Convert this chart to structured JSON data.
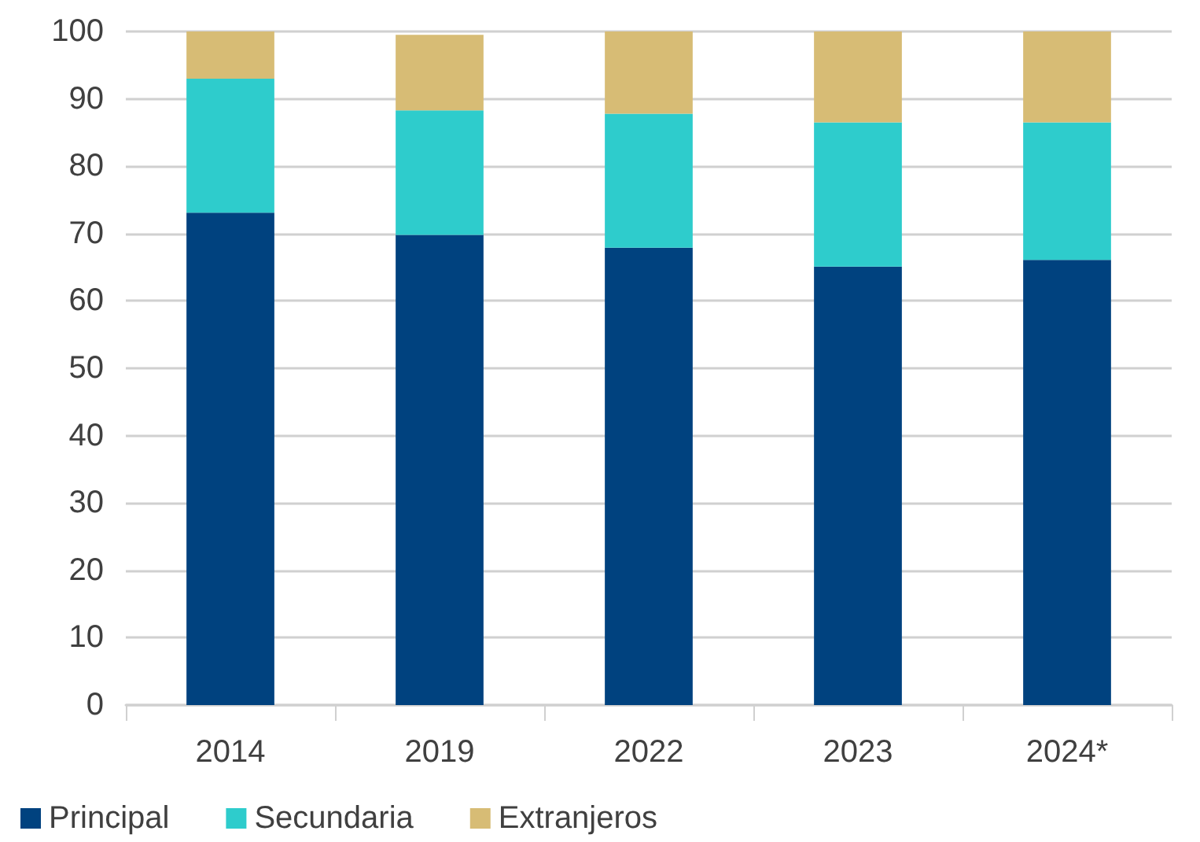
{
  "chart_data": {
    "type": "bar",
    "stacked": true,
    "categories": [
      "2014",
      "2019",
      "2022",
      "2023",
      "2024*"
    ],
    "series": [
      {
        "name": "Principal",
        "color": "#00427f",
        "values": [
          73.1,
          69.8,
          67.9,
          65.1,
          66.1
        ]
      },
      {
        "name": "Secundaria",
        "color": "#2ecccc",
        "values": [
          19.9,
          18.5,
          19.9,
          21.4,
          20.4
        ]
      },
      {
        "name": "Extranjeros",
        "color": "#d7bc75",
        "values": [
          7.0,
          11.2,
          12.2,
          13.5,
          13.5
        ]
      }
    ],
    "ylim": [
      0,
      100
    ],
    "yticks": [
      0,
      10,
      20,
      30,
      40,
      50,
      60,
      70,
      80,
      90,
      100
    ],
    "grid": "y",
    "legend": "bottom left"
  }
}
